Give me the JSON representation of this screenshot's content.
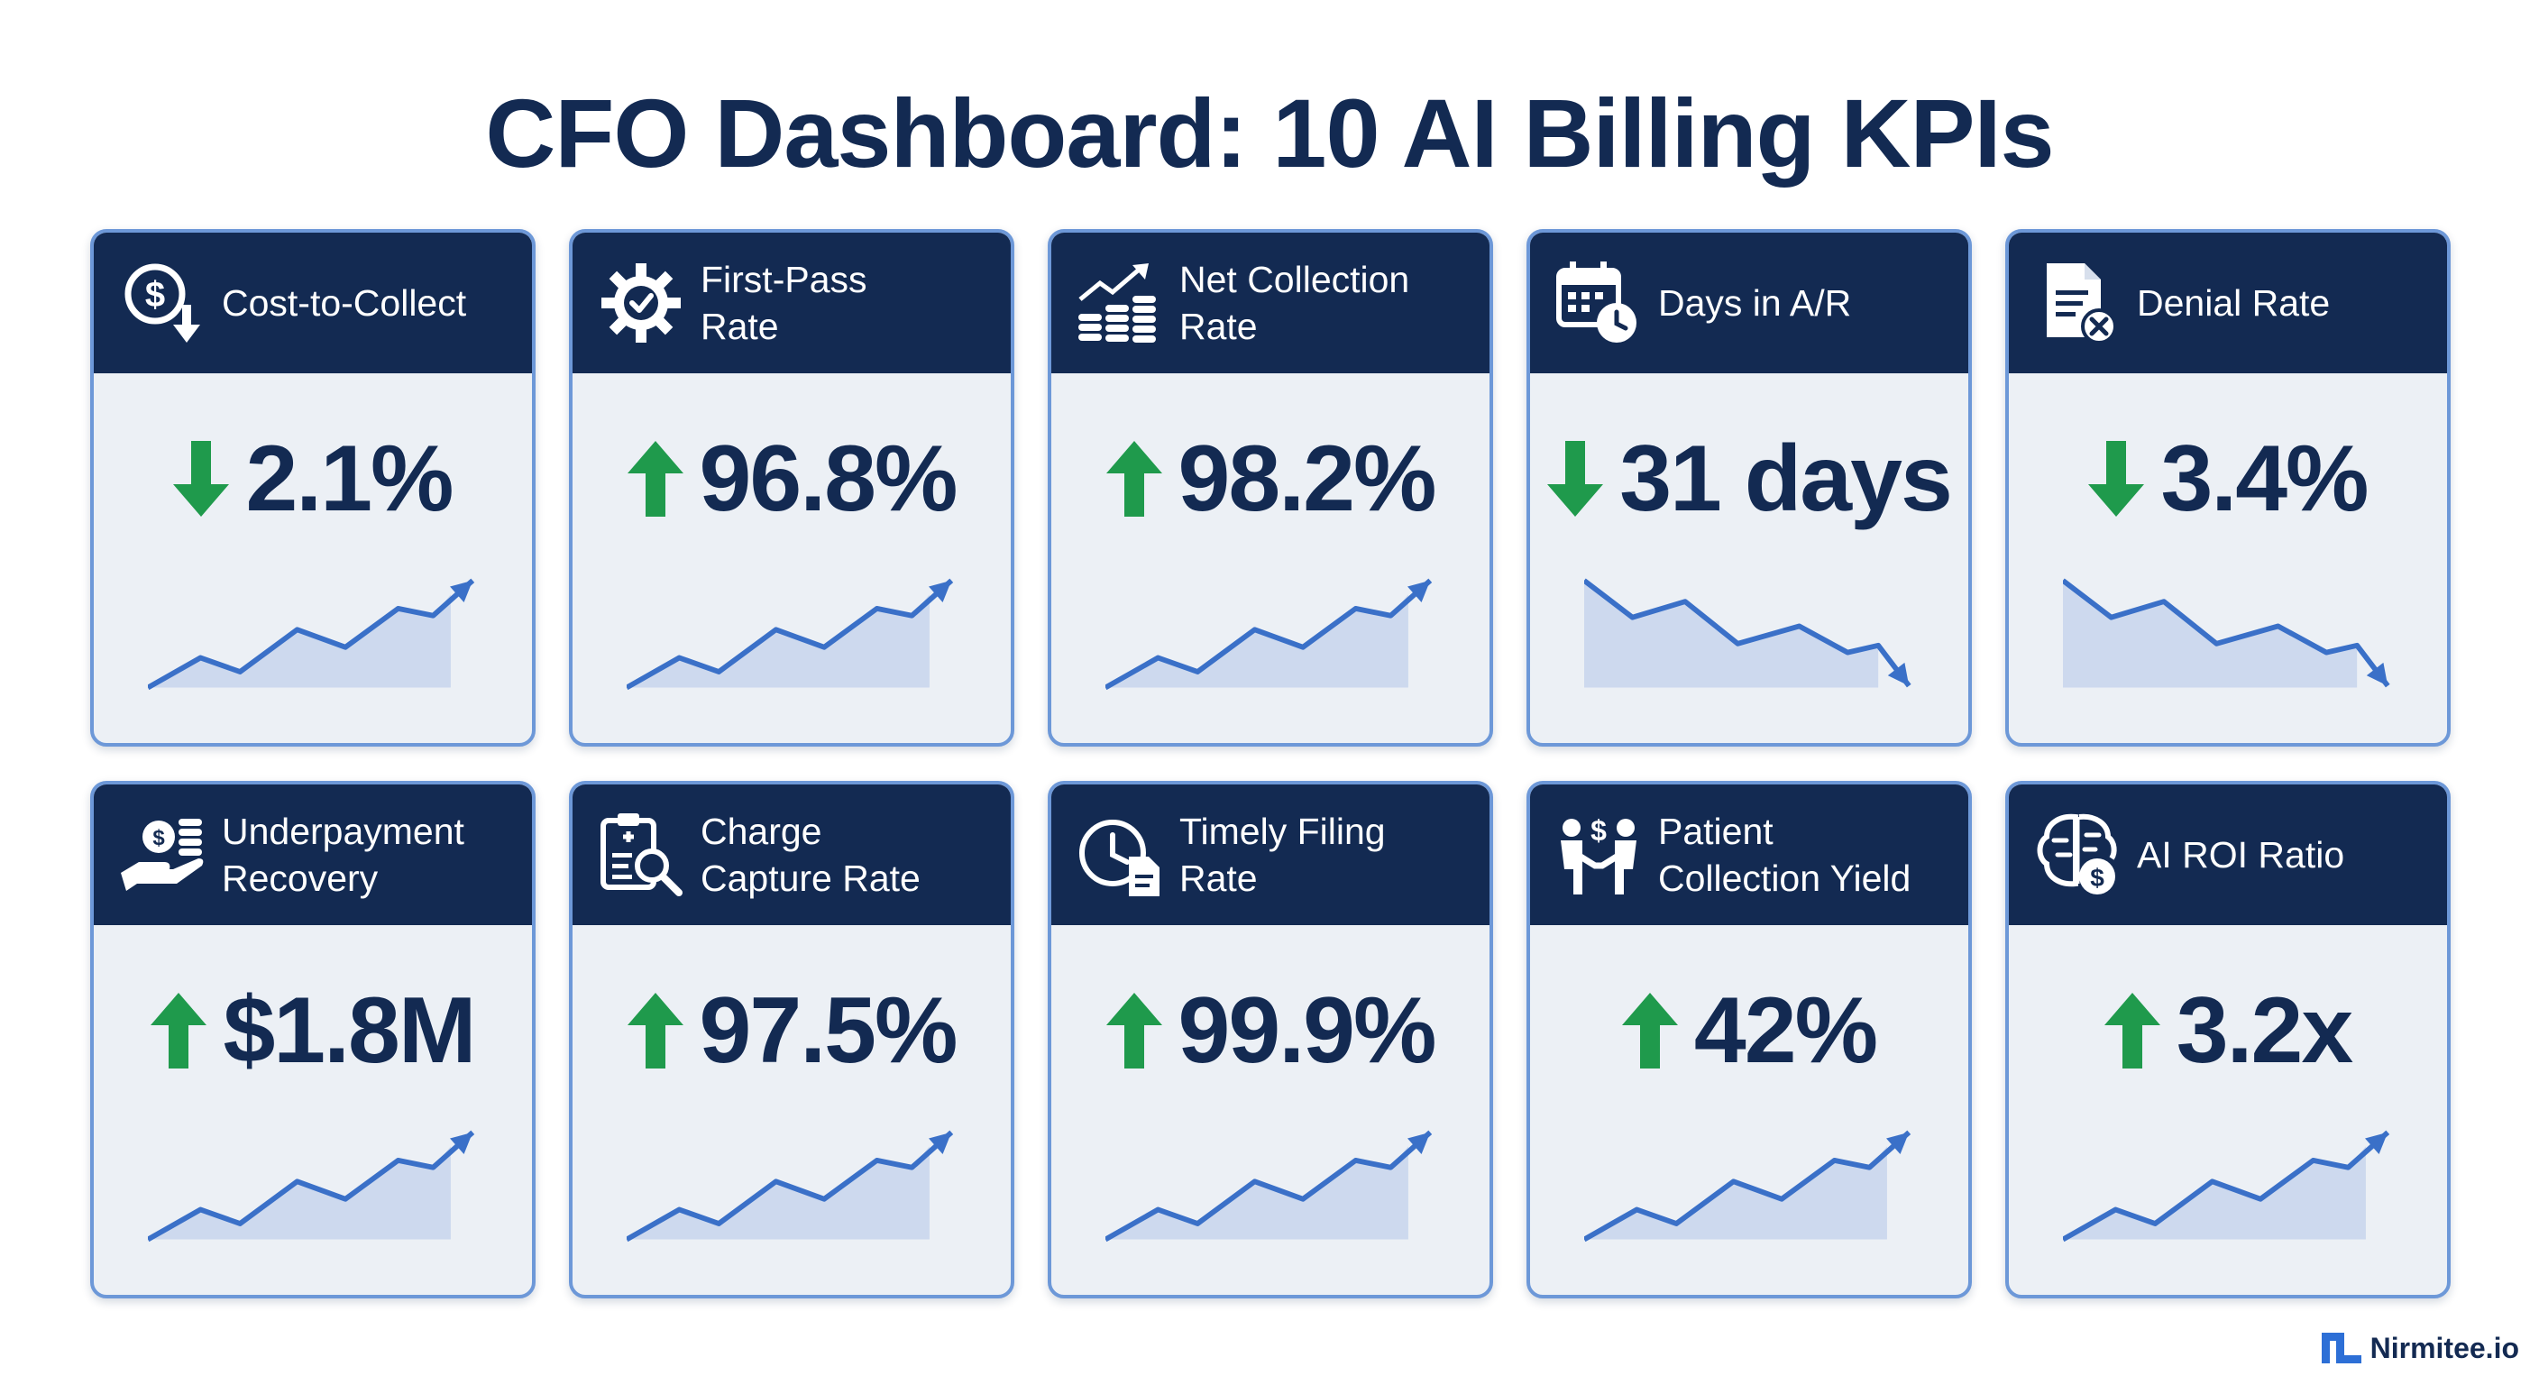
{
  "title": "CFO Dashboard: 10 AI Billing KPIs",
  "brand": "Nirmitee.io",
  "colors": {
    "navy": "#132a52",
    "green": "#1f9a4c",
    "line": "#3a70c8",
    "fill": "#cdd9ee",
    "border": "#6d98d8"
  },
  "cards": [
    {
      "label": "Cost-to-Collect",
      "value": "2.1%",
      "direction": "down",
      "trend": "up",
      "icon": "dollar-down-icon"
    },
    {
      "label": "First-Pass\nRate",
      "value": "96.8%",
      "direction": "up",
      "trend": "up",
      "icon": "gear-check-icon"
    },
    {
      "label": "Net Collection\nRate",
      "value": "98.2%",
      "direction": "up",
      "trend": "up",
      "icon": "coins-growth-icon"
    },
    {
      "label": "Days in A/R",
      "value": "31 days",
      "direction": "down",
      "trend": "down",
      "icon": "calendar-clock-icon"
    },
    {
      "label": "Denial Rate",
      "value": "3.4%",
      "direction": "down",
      "trend": "down",
      "icon": "document-x-icon"
    },
    {
      "label": "Underpayment\nRecovery",
      "value": "$1.8M",
      "direction": "up",
      "trend": "up",
      "icon": "hand-coins-icon"
    },
    {
      "label": "Charge\nCapture Rate",
      "value": "97.5%",
      "direction": "up",
      "trend": "up",
      "icon": "clipboard-search-icon"
    },
    {
      "label": "Timely Filing\nRate",
      "value": "99.9%",
      "direction": "up",
      "trend": "up",
      "icon": "clock-document-icon"
    },
    {
      "label": "Patient\nCollection Yield",
      "value": "42%",
      "direction": "up",
      "trend": "up",
      "icon": "handshake-dollar-icon"
    },
    {
      "label": "AI ROI Ratio",
      "value": "3.2x",
      "direction": "up",
      "trend": "up",
      "icon": "brain-dollar-icon"
    }
  ]
}
